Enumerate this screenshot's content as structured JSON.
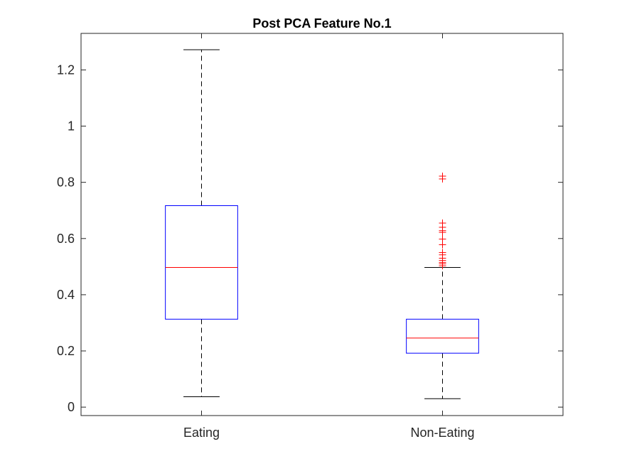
{
  "chart_data": {
    "type": "boxplot",
    "title": "Post PCA Feature No.1",
    "xlabel": "",
    "ylabel": "",
    "categories": [
      "Eating",
      "Non-Eating"
    ],
    "ylim": [
      -0.03,
      1.33
    ],
    "yticks": [
      0,
      0.2,
      0.4,
      0.6,
      0.8,
      1,
      1.2
    ],
    "ytick_labels": [
      "0",
      "0.2",
      "0.4",
      "0.6",
      "0.8",
      "1",
      "1.2"
    ],
    "box_color": "#0000ff",
    "median_color": "#ff0000",
    "whisker_color": "#000000",
    "outlier_color": "#ff0000",
    "boxes": [
      {
        "category": "Eating",
        "whisker_low": 0.037,
        "q1": 0.313,
        "median": 0.497,
        "q3": 0.717,
        "whisker_high": 1.272,
        "outliers": []
      },
      {
        "category": "Non-Eating",
        "whisker_low": 0.03,
        "q1": 0.192,
        "median": 0.246,
        "q3": 0.313,
        "whisker_high": 0.497,
        "outliers": [
          0.503,
          0.51,
          0.515,
          0.522,
          0.53,
          0.542,
          0.55,
          0.578,
          0.598,
          0.622,
          0.628,
          0.64,
          0.655,
          0.812,
          0.822
        ]
      }
    ]
  }
}
